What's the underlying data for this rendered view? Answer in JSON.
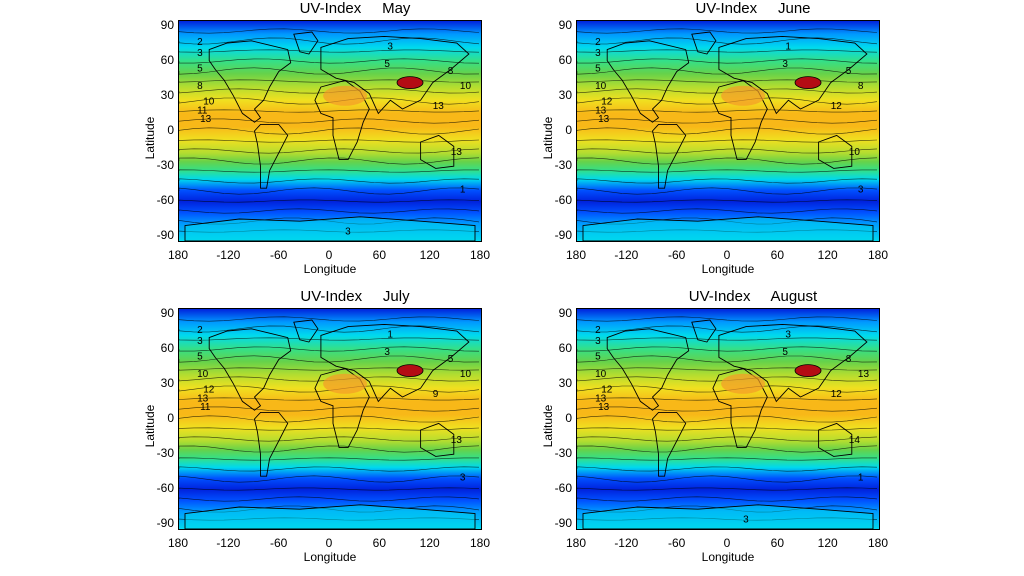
{
  "maps": [
    {
      "title": "UV-Index",
      "month": "May",
      "xlabel": "Longitude",
      "ylabel": "Latitude",
      "xticks": [
        "180",
        "-120",
        "-60",
        "0",
        "60",
        "120",
        "180"
      ],
      "yticks": [
        "90",
        "60",
        "30",
        "0",
        "-30",
        "-60",
        "-90"
      ],
      "contour_labels": [
        "2",
        "3",
        "5",
        "8",
        "10",
        "11",
        "13",
        "13",
        "13",
        "10",
        "8",
        "5",
        "3",
        "1",
        "3"
      ]
    },
    {
      "title": "UV-Index",
      "month": "June",
      "xlabel": "Longitude",
      "ylabel": "Latitude",
      "xticks": [
        "180",
        "-120",
        "-60",
        "0",
        "60",
        "120",
        "180"
      ],
      "yticks": [
        "90",
        "60",
        "30",
        "0",
        "-30",
        "-60",
        "-90"
      ],
      "contour_labels": [
        "2",
        "3",
        "5",
        "10",
        "12",
        "13",
        "13",
        "12",
        "10",
        "8",
        "5",
        "3",
        "1",
        "3"
      ]
    },
    {
      "title": "UV-Index",
      "month": "July",
      "xlabel": "Longitude",
      "ylabel": "Latitude",
      "xticks": [
        "180",
        "-120",
        "-60",
        "0",
        "60",
        "120",
        "180"
      ],
      "yticks": [
        "90",
        "60",
        "30",
        "0",
        "-30",
        "-60",
        "-90"
      ],
      "contour_labels": [
        "2",
        "3",
        "5",
        "10",
        "12",
        "13",
        "11",
        "9",
        "13",
        "10",
        "5",
        "3",
        "1",
        "3"
      ]
    },
    {
      "title": "UV-Index",
      "month": "August",
      "xlabel": "Longitude",
      "ylabel": "Latitude",
      "xticks": [
        "180",
        "-120",
        "-60",
        "0",
        "60",
        "120",
        "180"
      ],
      "yticks": [
        "90",
        "60",
        "30",
        "0",
        "-30",
        "-60",
        "-90"
      ],
      "contour_labels": [
        "2",
        "3",
        "5",
        "10",
        "12",
        "13",
        "13",
        "12",
        "14",
        "13",
        "8",
        "5",
        "3",
        "1",
        "3"
      ]
    }
  ],
  "colors": {
    "scale": [
      "#0022dd",
      "#0050ff",
      "#0099ff",
      "#00d9ee",
      "#33e08a",
      "#66d24a",
      "#b4dd30",
      "#f0e020",
      "#f8b818",
      "#f59a28",
      "#e4482a",
      "#b40c14"
    ]
  }
}
